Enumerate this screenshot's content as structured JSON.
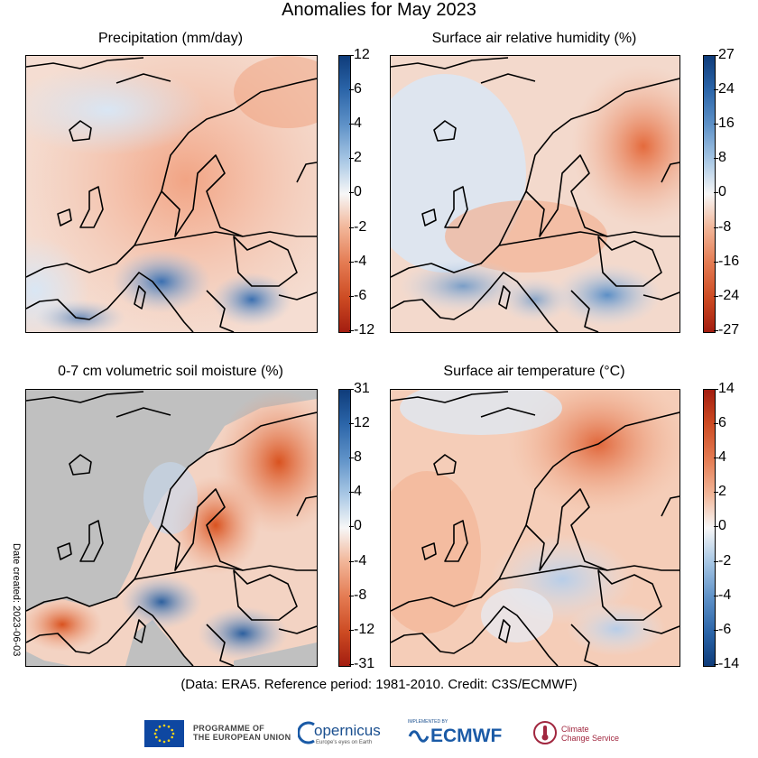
{
  "title": "Anomalies for May 2023",
  "credit": "(Data: ERA5.  Reference period: 1981-2010.  Credit: C3S/ECMWF)",
  "date_created": "Date created: 2023-06-03",
  "footer": {
    "eu_line1": "PROGRAMME OF",
    "eu_line2": "THE EUROPEAN UNION",
    "copernicus_name": "opernicus",
    "copernicus_tagline": "Europe's eyes on Earth",
    "ecmwf_implemented": "IMPLEMENTED BY",
    "ecmwf_name": "ECMWF",
    "climate_line1": "Climate",
    "climate_line2": "Change Service"
  },
  "colors": {
    "negative_precip": "#c8441e",
    "positive_precip": "#2a5a9c",
    "neutral": "#f5f5f5",
    "land_masked": "#c0c0c0"
  },
  "chart_data": [
    {
      "type": "heatmap",
      "title": "Precipitation (mm/day)",
      "colorbar_ticks": [
        "12",
        "6",
        "4",
        "2",
        "0",
        "-2",
        "-4",
        "-6",
        "-12"
      ],
      "range": [
        -12,
        12
      ],
      "colormap": "red-white-blue",
      "pattern": "dry north, wet south"
    },
    {
      "type": "heatmap",
      "title": "Surface air relative humidity (%)",
      "colorbar_ticks": [
        "27",
        "24",
        "16",
        "8",
        "0",
        "-8",
        "-16",
        "-24",
        "-27"
      ],
      "range": [
        -27,
        27
      ],
      "colormap": "red-white-blue",
      "pattern": "dry north-east, moist south"
    },
    {
      "type": "heatmap",
      "title": "0-7 cm volumetric soil moisture (%)",
      "colorbar_ticks": [
        "31",
        "12",
        "8",
        "4",
        "0",
        "-4",
        "-8",
        "-12",
        "-31"
      ],
      "range": [
        -31,
        31
      ],
      "colormap": "red-white-blue",
      "pattern": "dry east and Iberia, wet Italy and Balkans"
    },
    {
      "type": "heatmap",
      "title": "Surface air temperature (°C)",
      "colorbar_ticks": [
        "14",
        "6",
        "4",
        "2",
        "0",
        "-2",
        "-4",
        "-6",
        "-14"
      ],
      "range": [
        -14,
        14
      ],
      "colormap": "blue-white-red",
      "pattern": "warm north-east and west, cool south-east"
    }
  ]
}
